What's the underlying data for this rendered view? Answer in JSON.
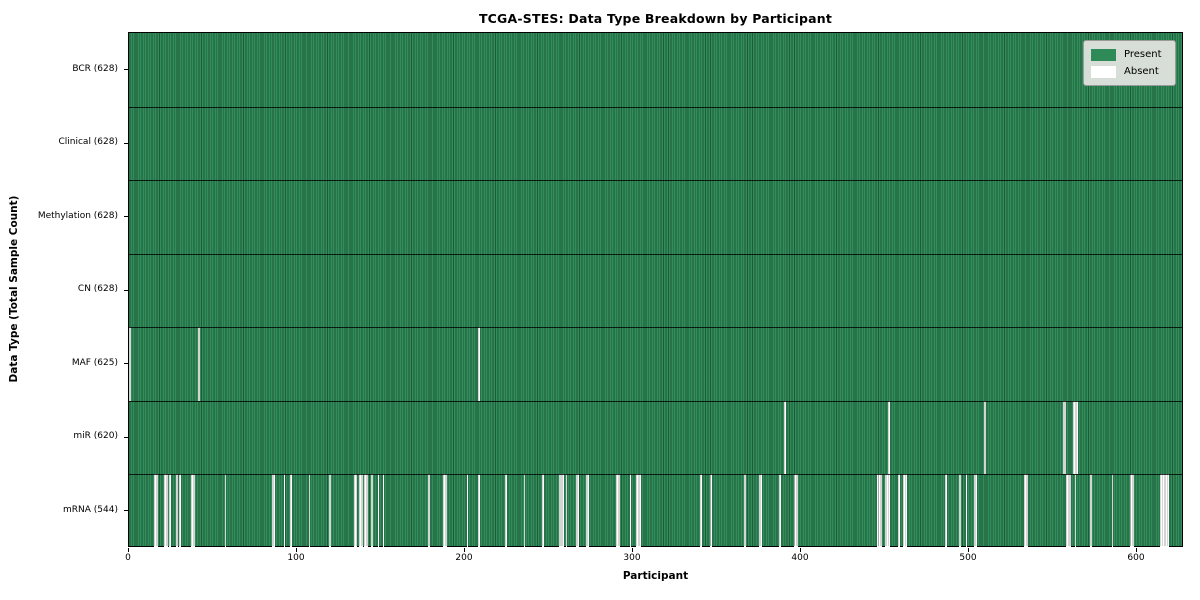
{
  "chart_data": {
    "type": "heatmap",
    "title": "TCGA-STES: Data Type Breakdown by Participant",
    "xlabel": "Participant",
    "ylabel": "Data Type (Total Sample Count)",
    "x_ticks": [
      0,
      100,
      200,
      300,
      400,
      500,
      600
    ],
    "x_range": [
      0,
      628
    ],
    "n_participants": 628,
    "grid": false,
    "legend_position": "upper right",
    "colors": {
      "present": "#2e8b57",
      "absent": "#ffffff"
    },
    "legend": [
      {
        "label": "Present",
        "color": "#2e8b57"
      },
      {
        "label": "Absent",
        "color": "#ffffff"
      }
    ],
    "rows": [
      {
        "label": "BCR (628)",
        "data_type": "BCR",
        "present_count": 628,
        "absent_participants": []
      },
      {
        "label": "Clinical (628)",
        "data_type": "Clinical",
        "present_count": 628,
        "absent_participants": []
      },
      {
        "label": "Methylation (628)",
        "data_type": "Methylation",
        "present_count": 628,
        "absent_participants": []
      },
      {
        "label": "CN (628)",
        "data_type": "CN",
        "present_count": 628,
        "absent_participants": []
      },
      {
        "label": "MAF (625)",
        "data_type": "MAF",
        "present_count": 625,
        "absent_participants": [
          0,
          41,
          208
        ]
      },
      {
        "label": "miR (620)",
        "data_type": "miR",
        "present_count": 620,
        "absent_participants": [
          390,
          452,
          509,
          556,
          557,
          562,
          563,
          564
        ]
      },
      {
        "label": "mRNA (544)",
        "data_type": "mRNA",
        "present_count": 544,
        "absent_participants": [
          15,
          16,
          21,
          22,
          24,
          28,
          30,
          37,
          38,
          57,
          85,
          86,
          92,
          96,
          107,
          119,
          134,
          135,
          137,
          138,
          140,
          141,
          144,
          148,
          151,
          178,
          187,
          188,
          201,
          208,
          224,
          235,
          246,
          256,
          257,
          258,
          260,
          266,
          267,
          272,
          273,
          290,
          291,
          298,
          302,
          303,
          304,
          340,
          346,
          366,
          375,
          376,
          387,
          396,
          397,
          445,
          446,
          447,
          450,
          451,
          452,
          458,
          461,
          462,
          486,
          494,
          498,
          503,
          504,
          533,
          534,
          558,
          559,
          560,
          563,
          572,
          585,
          596,
          597,
          614,
          615,
          616,
          617,
          618
        ]
      }
    ]
  }
}
